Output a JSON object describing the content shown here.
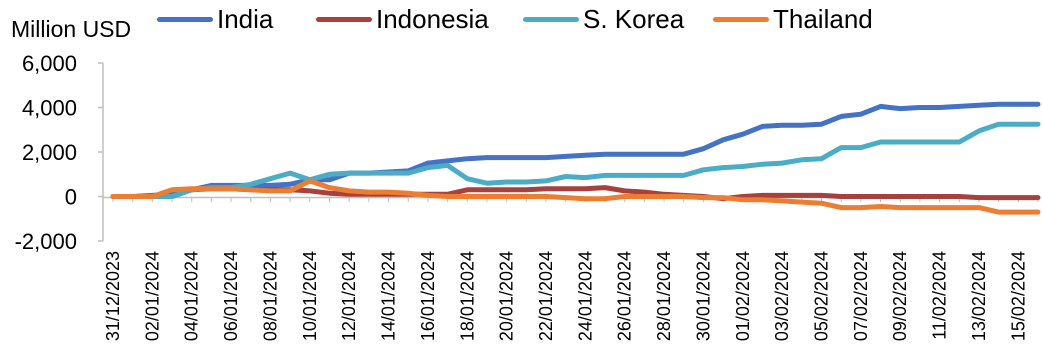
{
  "chart_data": {
    "type": "line",
    "ylabel": "Million USD",
    "ylim": [
      -2000,
      6000
    ],
    "yticks": [
      -2000,
      0,
      2000,
      4000,
      6000
    ],
    "ytick_labels": [
      "-2,000",
      "0",
      "2,000",
      "4,000",
      "6,000"
    ],
    "grid": false,
    "legend_position": "top",
    "x": [
      "31/12/2023",
      "01/01/2024",
      "02/01/2024",
      "03/01/2024",
      "04/01/2024",
      "05/01/2024",
      "06/01/2024",
      "07/01/2024",
      "08/01/2024",
      "09/01/2024",
      "10/01/2024",
      "11/01/2024",
      "12/01/2024",
      "13/01/2024",
      "14/01/2024",
      "15/01/2024",
      "16/01/2024",
      "17/01/2024",
      "18/01/2024",
      "19/01/2024",
      "20/01/2024",
      "21/01/2024",
      "22/01/2024",
      "23/01/2024",
      "24/01/2024",
      "25/01/2024",
      "26/01/2024",
      "27/01/2024",
      "28/01/2024",
      "29/01/2024",
      "30/01/2024",
      "31/01/2024",
      "01/02/2024",
      "02/02/2024",
      "03/02/2024",
      "04/02/2024",
      "05/02/2024",
      "06/02/2024",
      "07/02/2024",
      "08/02/2024",
      "09/02/2024",
      "10/02/2024",
      "11/02/2024",
      "12/02/2024",
      "13/02/2024",
      "14/02/2024",
      "15/02/2024",
      "16/02/2024"
    ],
    "xtick_labels": [
      "31/12/2023",
      "02/01/2024",
      "04/01/2024",
      "06/01/2024",
      "08/01/2024",
      "10/01/2024",
      "12/01/2024",
      "14/01/2024",
      "16/01/2024",
      "18/01/2024",
      "20/01/2024",
      "22/01/2024",
      "24/01/2024",
      "26/01/2024",
      "28/01/2024",
      "30/01/2024",
      "01/02/2024",
      "03/02/2024",
      "05/02/2024",
      "07/02/2024",
      "09/02/2024",
      "11/02/2024",
      "13/02/2024",
      "15/02/2024"
    ],
    "series": [
      {
        "name": "India",
        "color": "#4472C4",
        "values": [
          0,
          0,
          50,
          100,
          300,
          500,
          500,
          500,
          500,
          550,
          750,
          750,
          1050,
          1050,
          1100,
          1150,
          1500,
          1600,
          1700,
          1750,
          1750,
          1750,
          1750,
          1800,
          1850,
          1900,
          1900,
          1900,
          1900,
          1900,
          2150,
          2550,
          2800,
          3150,
          3200,
          3200,
          3250,
          3600,
          3700,
          4050,
          3950,
          4000,
          4000,
          4050,
          4100,
          4150,
          4150,
          4150
        ]
      },
      {
        "name": "Indonesia",
        "color": "#A8413D",
        "values": [
          0,
          0,
          0,
          0,
          300,
          350,
          350,
          300,
          300,
          300,
          250,
          150,
          100,
          100,
          100,
          100,
          100,
          100,
          300,
          300,
          300,
          300,
          350,
          350,
          350,
          400,
          250,
          200,
          100,
          50,
          0,
          -100,
          0,
          50,
          50,
          50,
          50,
          0,
          0,
          0,
          0,
          0,
          0,
          0,
          -50,
          -50,
          -50,
          -50
        ]
      },
      {
        "name": "S. Korea",
        "color": "#4BACC6",
        "values": [
          0,
          0,
          0,
          0,
          300,
          400,
          400,
          550,
          800,
          1050,
          750,
          1000,
          1050,
          1050,
          1050,
          1050,
          1300,
          1400,
          800,
          600,
          650,
          650,
          700,
          900,
          850,
          950,
          950,
          950,
          950,
          950,
          1200,
          1300,
          1350,
          1450,
          1500,
          1650,
          1700,
          2200,
          2200,
          2450,
          2450,
          2450,
          2450,
          2450,
          2950,
          3250,
          3250,
          3250
        ]
      },
      {
        "name": "Thailand",
        "color": "#ED7D31",
        "values": [
          0,
          0,
          0,
          300,
          350,
          350,
          350,
          300,
          250,
          250,
          700,
          400,
          250,
          200,
          200,
          150,
          50,
          0,
          0,
          0,
          0,
          0,
          0,
          -50,
          -100,
          -100,
          0,
          0,
          0,
          0,
          -50,
          -50,
          -150,
          -150,
          -200,
          -250,
          -300,
          -500,
          -500,
          -450,
          -500,
          -500,
          -500,
          -500,
          -500,
          -700,
          -700,
          -700
        ]
      }
    ]
  }
}
